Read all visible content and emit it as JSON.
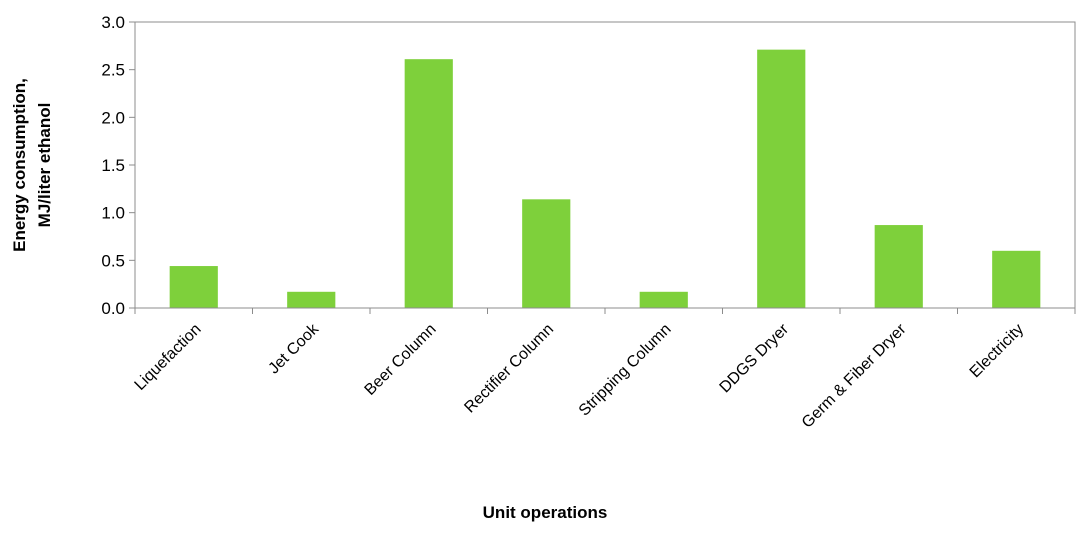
{
  "chart_data": {
    "type": "bar",
    "title": "",
    "xlabel": "Unit operations",
    "ylabel_lines": [
      "Energy consumption,",
      "MJ/liter ethanol"
    ],
    "categories": [
      "Liquefaction",
      "Jet Cook",
      "Beer Column",
      "Rectifier Column",
      "Stripping Column",
      "DDGS Dryer",
      "Germ & Fiber Dryer",
      "Electricity"
    ],
    "values": [
      0.44,
      0.17,
      2.61,
      1.14,
      0.17,
      2.71,
      0.87,
      0.6
    ],
    "ylim": [
      0,
      3.0
    ],
    "yticks": [
      "0.0",
      "0.5",
      "1.0",
      "1.5",
      "2.0",
      "2.5",
      "3.0"
    ],
    "grid": false,
    "legend": "none",
    "bar_color": "#7ed03b"
  }
}
